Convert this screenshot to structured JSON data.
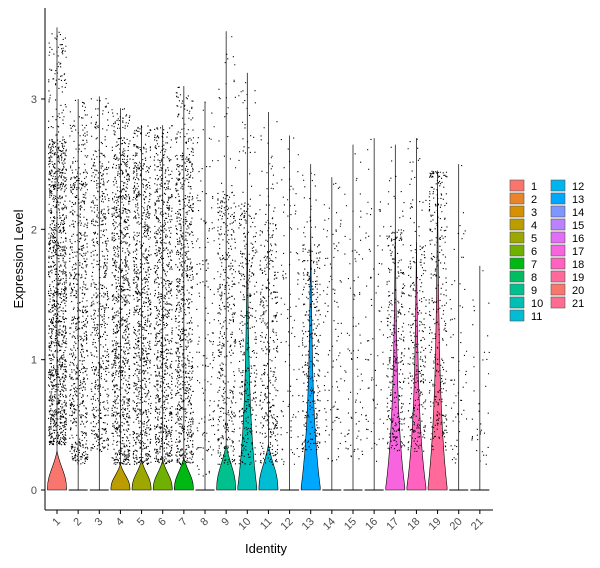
{
  "chart_data": {
    "type": "violin",
    "title": "",
    "xlabel": "Identity",
    "ylabel": "Expression Level",
    "ylim": [
      -0.15,
      3.65
    ],
    "yticks": [
      0,
      1,
      2,
      3
    ],
    "grid": false,
    "legend_position": "right",
    "categories": [
      "1",
      "2",
      "3",
      "4",
      "5",
      "6",
      "7",
      "8",
      "9",
      "10",
      "11",
      "12",
      "13",
      "14",
      "15",
      "16",
      "17",
      "18",
      "19",
      "20",
      "21"
    ],
    "colors": [
      "#F8766D",
      "#E9842C",
      "#D69100",
      "#BC9D00",
      "#9CA700",
      "#6FB000",
      "#00B813",
      "#00BD61",
      "#00C08E",
      "#00C0B4",
      "#00BDD4",
      "#00B5EE",
      "#00A7FF",
      "#7F96FF",
      "#BC81FF",
      "#E26EF7",
      "#F863DF",
      "#FF62BF",
      "#FF6A9A",
      "#F8766D",
      "#FF6C91"
    ],
    "series": [
      {
        "cluster": "1",
        "max": 3.55,
        "violin_top": 0.3,
        "dot_density": 1.0,
        "dots_low": 0.35,
        "dots_high": 2.7
      },
      {
        "cluster": "2",
        "max": 3.0,
        "violin_top": 0.0,
        "dot_density": 0.55,
        "dots_low": 0.2,
        "dots_high": 2.5
      },
      {
        "cluster": "3",
        "max": 3.02,
        "violin_top": 0.0,
        "dot_density": 0.45,
        "dots_low": 0.3,
        "dots_high": 2.6
      },
      {
        "cluster": "4",
        "max": 2.93,
        "violin_top": 0.2,
        "dot_density": 0.75,
        "dots_low": 0.2,
        "dots_high": 2.6
      },
      {
        "cluster": "5",
        "max": 2.8,
        "violin_top": 0.23,
        "dot_density": 0.65,
        "dots_low": 0.2,
        "dots_high": 2.5
      },
      {
        "cluster": "6",
        "max": 2.8,
        "violin_top": 0.23,
        "dot_density": 0.65,
        "dots_low": 0.2,
        "dots_high": 2.5
      },
      {
        "cluster": "7",
        "max": 3.1,
        "violin_top": 0.25,
        "dot_density": 0.65,
        "dots_low": 0.2,
        "dots_high": 2.6
      },
      {
        "cluster": "8",
        "max": 2.98,
        "violin_top": 0.0,
        "dot_density": 0.12,
        "dots_low": 0.1,
        "dots_high": 2.3
      },
      {
        "cluster": "9",
        "max": 3.52,
        "violin_top": 0.35,
        "dot_density": 0.35,
        "dots_low": 0.2,
        "dots_high": 2.3
      },
      {
        "cluster": "10",
        "max": 3.2,
        "violin_top": 2.0,
        "dot_density": 0.3,
        "dots_low": 0.2,
        "dots_high": 2.2
      },
      {
        "cluster": "11",
        "max": 2.9,
        "violin_top": 0.35,
        "dot_density": 0.3,
        "dots_low": 0.2,
        "dots_high": 2.1
      },
      {
        "cluster": "12",
        "max": 2.72,
        "violin_top": 0.0,
        "dot_density": 0.08,
        "dots_low": 0.2,
        "dots_high": 2.3
      },
      {
        "cluster": "13",
        "max": 2.5,
        "violin_top": 2.0,
        "dot_density": 0.25,
        "dots_low": 0.3,
        "dots_high": 1.9
      },
      {
        "cluster": "14",
        "max": 2.4,
        "violin_top": 0.0,
        "dot_density": 0.08,
        "dots_low": 0.2,
        "dots_high": 2.2
      },
      {
        "cluster": "15",
        "max": 2.65,
        "violin_top": 0.0,
        "dot_density": 0.07,
        "dots_low": 0.2,
        "dots_high": 2.2
      },
      {
        "cluster": "16",
        "max": 2.7,
        "violin_top": 0.0,
        "dot_density": 0.06,
        "dots_low": 0.2,
        "dots_high": 2.2
      },
      {
        "cluster": "17",
        "max": 2.65,
        "violin_top": 2.0,
        "dot_density": 0.25,
        "dots_low": 0.3,
        "dots_high": 2.0
      },
      {
        "cluster": "18",
        "max": 2.7,
        "violin_top": 1.9,
        "dot_density": 0.22,
        "dots_low": 0.3,
        "dots_high": 1.9
      },
      {
        "cluster": "19",
        "max": 2.45,
        "violin_top": 2.3,
        "dot_density": 0.25,
        "dots_low": 0.3,
        "dots_high": 2.4
      },
      {
        "cluster": "20",
        "max": 2.5,
        "violin_top": 0.0,
        "dot_density": 0.05,
        "dots_low": 0.2,
        "dots_high": 2.1
      },
      {
        "cluster": "21",
        "max": 1.72,
        "violin_top": 0.0,
        "dot_density": 0.03,
        "dots_low": 0.2,
        "dots_high": 1.5
      }
    ]
  }
}
